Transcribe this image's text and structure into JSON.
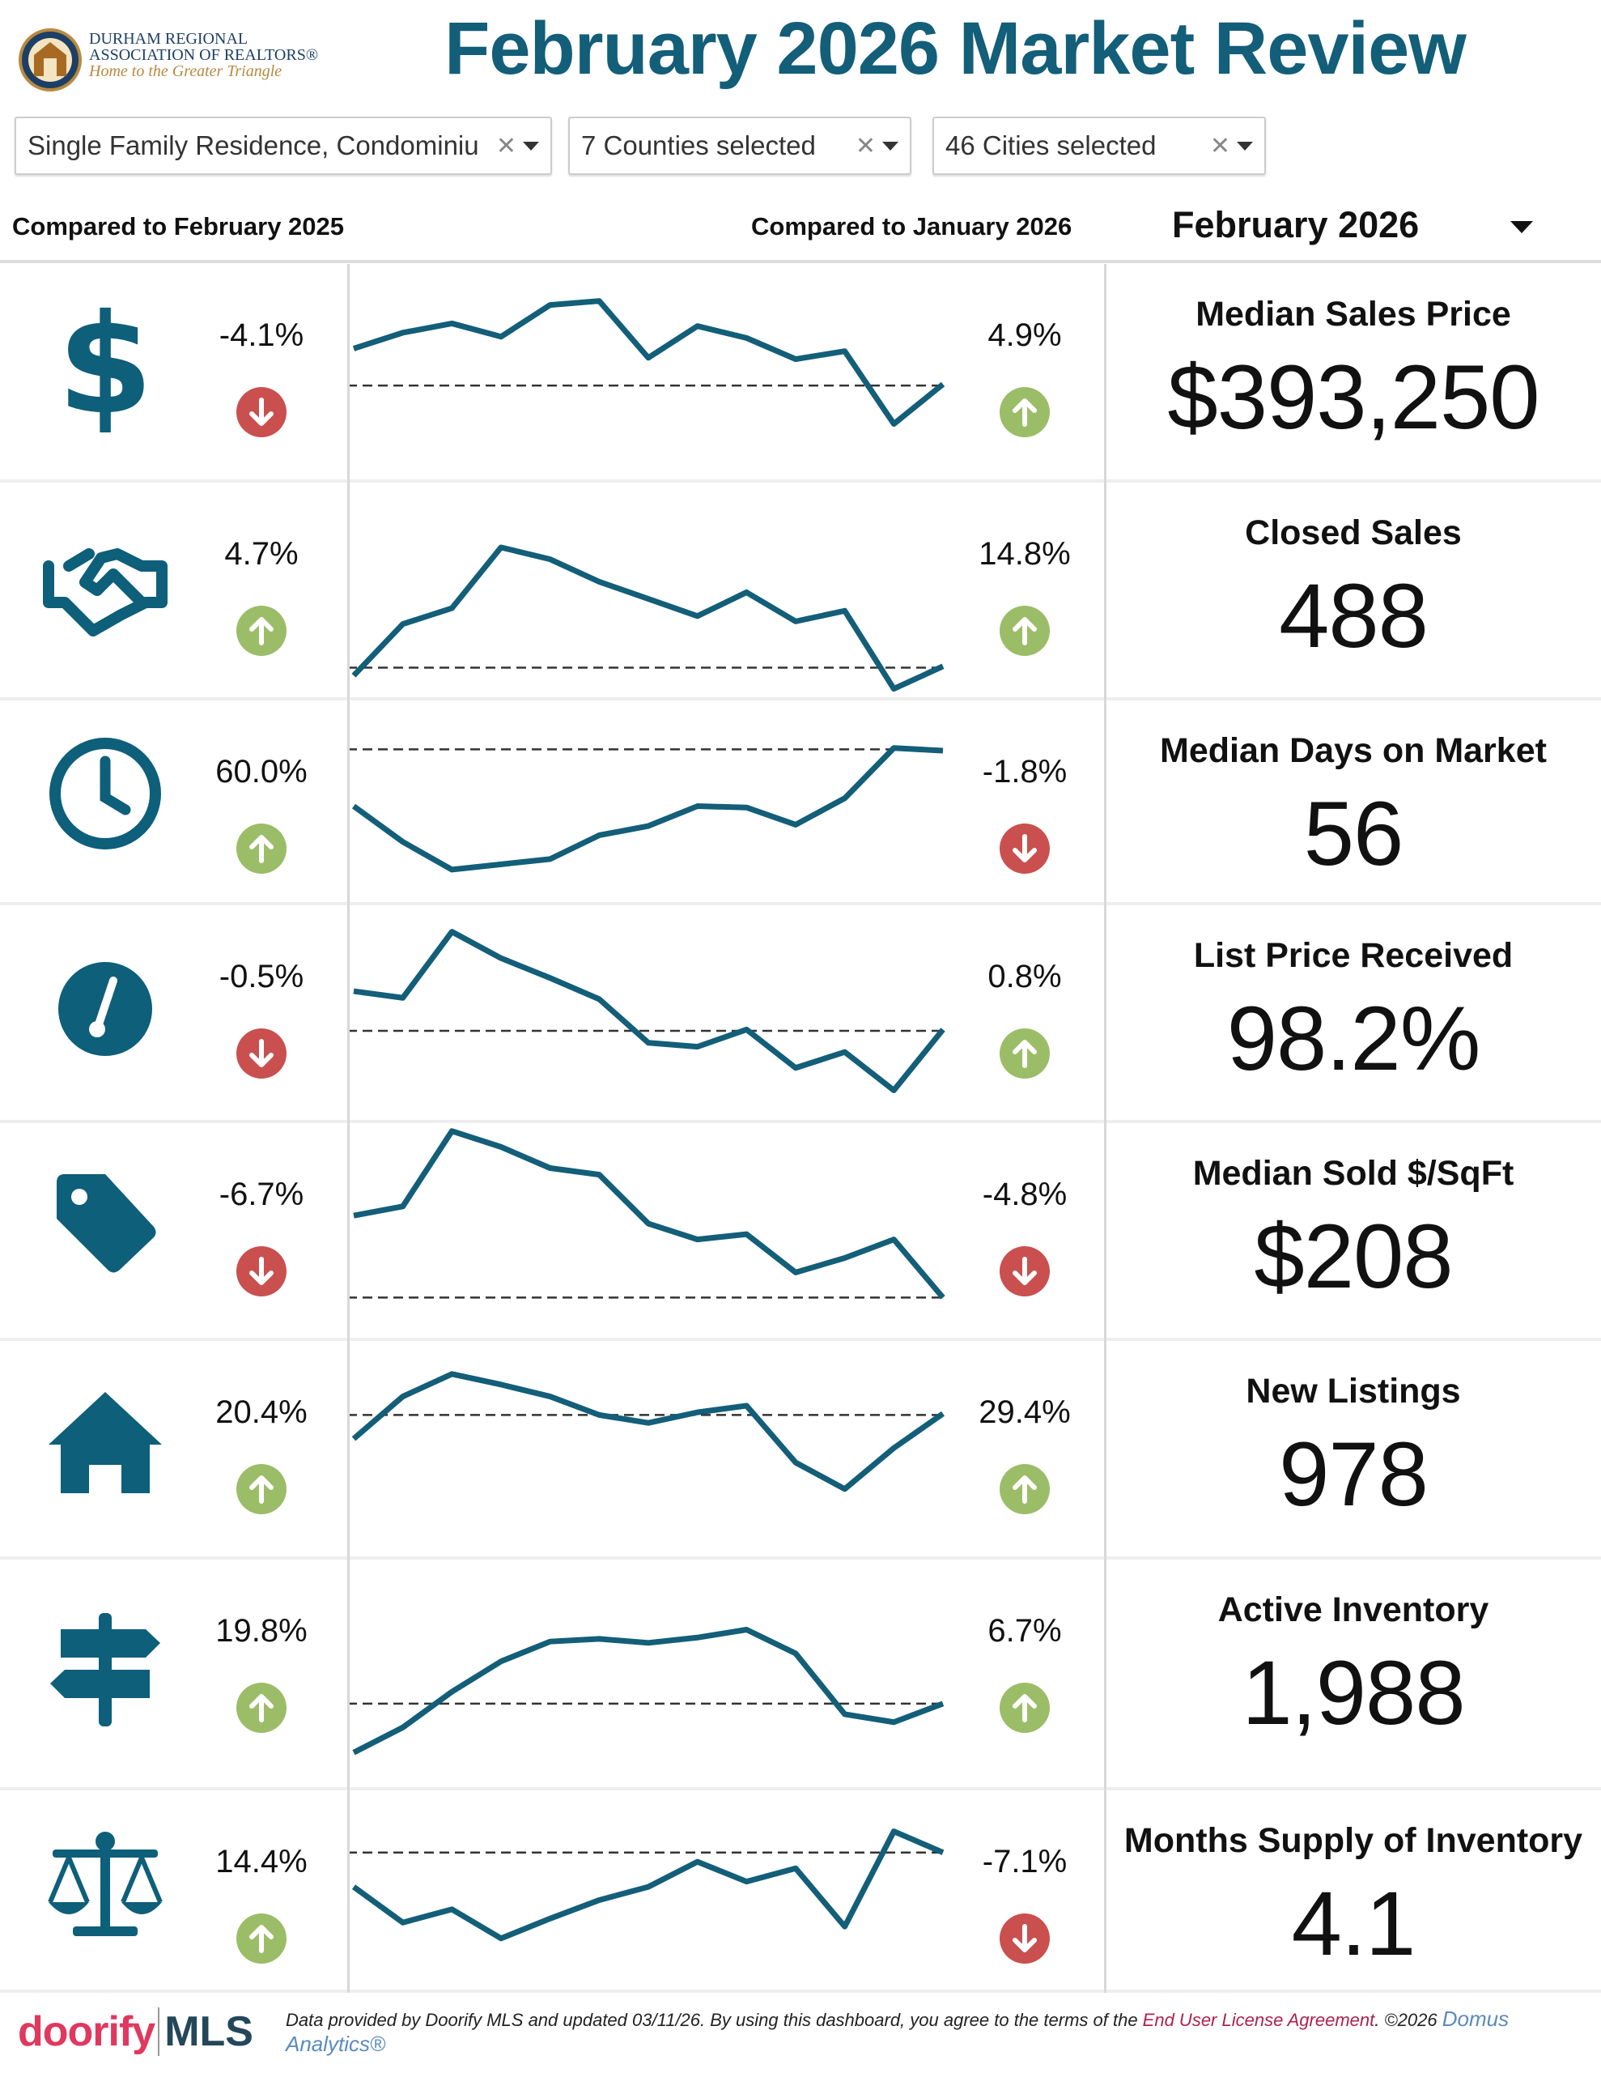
{
  "header": {
    "logo_text": [
      "DURHAM REGIONAL",
      "ASSOCIATION OF REALTORS®",
      "Home to the Greater Triangle"
    ],
    "title": "February 2026 Market Review"
  },
  "filters": [
    {
      "value": "Single Family Residence, Condominiu"
    },
    {
      "value": "7 Counties selected"
    },
    {
      "value": "46 Cities selected"
    }
  ],
  "compare": {
    "year": "Compared to February 2025",
    "month": "Compared to January 2026"
  },
  "period": {
    "selected": "February 2026"
  },
  "colors": {
    "accent": "#135e78",
    "icon": "#0d5f7a",
    "down": "#c9504f",
    "up": "#9bbd68"
  },
  "metrics": [
    {
      "icon": "dollar-icon",
      "title": "Median Sales Price",
      "value": "$393,250",
      "yoy": "-4.1%",
      "yoy_dir": "down",
      "mom": "4.9%",
      "mom_dir": "up",
      "trend": [
        101,
        113,
        120,
        110,
        134,
        137,
        94,
        118,
        109,
        93,
        99,
        44,
        74
      ],
      "baseline": 73
    },
    {
      "icon": "handshake-icon",
      "title": "Closed Sales",
      "value": "488",
      "yoy": "4.7%",
      "yoy_dir": "up",
      "mom": "14.8%",
      "mom_dir": "up",
      "trend": [
        19,
        58,
        70,
        116,
        107,
        90,
        77,
        64,
        82,
        60,
        68,
        9,
        26
      ],
      "baseline": 25
    },
    {
      "icon": "clock-icon",
      "title": "Median Days on Market",
      "value": "56",
      "yoy": "60.0%",
      "yoy_dir": "up",
      "mom": "-1.8%",
      "mom_dir": "down",
      "trend": [
        85,
        58,
        37,
        41,
        45,
        63,
        70,
        85,
        84,
        71,
        91,
        129,
        127
      ],
      "baseline": 128
    },
    {
      "icon": "gauge-icon",
      "title": "List Price Received",
      "value": "98.2%",
      "yoy": "-0.5%",
      "yoy_dir": "down",
      "mom": "0.8%",
      "mom_dir": "up",
      "trend": [
        100,
        95,
        145,
        125,
        110,
        94,
        61,
        58,
        71,
        42,
        54,
        25,
        71
      ],
      "baseline": 70
    },
    {
      "icon": "tag-icon",
      "title": "Median Sold $/SqFt",
      "value": "$208",
      "yoy": "-6.7%",
      "yoy_dir": "down",
      "mom": "-4.8%",
      "mom_dir": "down",
      "trend": [
        95,
        102,
        159,
        147,
        131,
        126,
        89,
        77,
        81,
        52,
        63,
        77,
        33
      ],
      "baseline": 33
    },
    {
      "icon": "house-icon",
      "title": "New Listings",
      "value": "978",
      "yoy": "20.4%",
      "yoy_dir": "up",
      "mom": "29.4%",
      "mom_dir": "up",
      "trend": [
        91,
        123,
        140,
        132,
        123,
        109,
        103,
        111,
        116,
        73,
        53,
        84,
        110
      ],
      "baseline": 109
    },
    {
      "icon": "signpost-icon",
      "title": "Active Inventory",
      "value": "1,988",
      "yoy": "19.8%",
      "yoy_dir": "up",
      "mom": "6.7%",
      "mom_dir": "up",
      "trend": [
        19,
        38,
        65,
        88,
        103,
        105,
        102,
        106,
        112,
        94,
        48,
        42,
        56
      ],
      "baseline": 56
    },
    {
      "icon": "scale-icon",
      "title": "Months Supply of Inventory",
      "value": "4.1",
      "yoy": "14.4%",
      "yoy_dir": "up",
      "mom": "-7.1%",
      "mom_dir": "down",
      "trend": [
        92,
        65,
        75,
        53,
        68,
        82,
        92,
        111,
        96,
        106,
        62,
        134,
        118
      ],
      "baseline": 118
    }
  ],
  "footer": {
    "brand_a": "doorify",
    "brand_b": "MLS",
    "text": "Data provided by Doorify MLS and updated 03/11/26.  By using this dashboard, you agree to the terms of the ",
    "eula": "End User License Agreement",
    "after": ".  ©2026 ",
    "domus": "Domus Analytics®"
  }
}
